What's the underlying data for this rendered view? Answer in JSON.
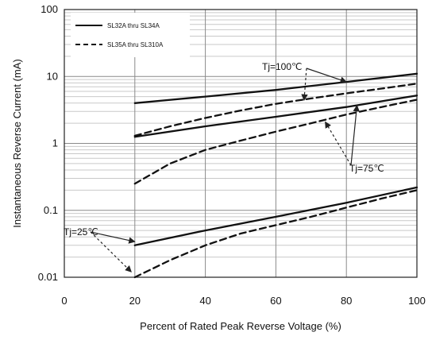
{
  "chart_data": {
    "type": "line",
    "title": "",
    "xlabel": "Percent of  Rated Peak Reverse Voltage (%)",
    "ylabel": "Instantaneous Reverse Current (mA)",
    "xlim": [
      0,
      100
    ],
    "ylim": [
      0.01,
      100
    ],
    "yscale": "log",
    "x_ticks": [
      0,
      20,
      40,
      60,
      80,
      100
    ],
    "x_tick_labels": [
      "0",
      "20",
      "40",
      "60",
      "80",
      "100"
    ],
    "y_ticks": [
      0.01,
      0.1,
      1,
      10,
      100
    ],
    "y_tick_labels": [
      "0.01",
      "0.1",
      "1",
      "10",
      "100"
    ],
    "grid": true,
    "legend": {
      "placement": "top-left",
      "entries": [
        {
          "label": "SL32A thru SL34A",
          "style": "solid"
        },
        {
          "label": "SL35A thru SL310A",
          "style": "dashed"
        }
      ]
    },
    "series": [
      {
        "name": "SL32A thru SL34A",
        "style": "solid",
        "group": "Tj=100",
        "x": [
          20,
          40,
          60,
          80,
          100
        ],
        "y": [
          4.0,
          5.0,
          6.3,
          8.3,
          11.0
        ]
      },
      {
        "name": "SL35A thru SL310A",
        "style": "dashed",
        "group": "Tj=100",
        "x": [
          20,
          30,
          40,
          50,
          60,
          70,
          80,
          90,
          100
        ],
        "y": [
          1.3,
          1.8,
          2.4,
          3.1,
          3.9,
          4.7,
          5.6,
          6.6,
          7.8
        ]
      },
      {
        "name": "SL32A thru SL34A",
        "style": "solid",
        "group": "Tj=75",
        "x": [
          20,
          40,
          60,
          80,
          100
        ],
        "y": [
          1.25,
          1.8,
          2.5,
          3.5,
          5.2
        ]
      },
      {
        "name": "SL35A thru SL310A",
        "style": "dashed",
        "group": "Tj=75",
        "x": [
          20,
          30,
          40,
          50,
          60,
          70,
          80,
          90,
          100
        ],
        "y": [
          0.25,
          0.5,
          0.8,
          1.1,
          1.5,
          2.0,
          2.7,
          3.5,
          4.5
        ]
      },
      {
        "name": "SL32A thru SL34A",
        "style": "solid",
        "group": "Tj=25",
        "x": [
          20,
          40,
          60,
          80,
          100
        ],
        "y": [
          0.03,
          0.05,
          0.08,
          0.13,
          0.22
        ]
      },
      {
        "name": "SL35A thru SL310A",
        "style": "dashed",
        "group": "Tj=25",
        "x": [
          20,
          30,
          40,
          50,
          60,
          70,
          80,
          90,
          100
        ],
        "y": [
          0.01,
          0.018,
          0.03,
          0.045,
          0.06,
          0.08,
          0.11,
          0.15,
          0.2
        ]
      }
    ],
    "annotations": [
      {
        "text": "Tj=100℃",
        "points_to": [
          [
            80,
            8.3
          ],
          [
            68,
            4.4
          ]
        ]
      },
      {
        "text": "Tj=75℃",
        "points_to": [
          [
            83,
            3.7
          ],
          [
            74,
            2.1
          ]
        ]
      },
      {
        "text": "Tj=25℃",
        "points_to": [
          [
            20,
            0.034
          ],
          [
            19,
            0.012
          ]
        ]
      }
    ]
  }
}
